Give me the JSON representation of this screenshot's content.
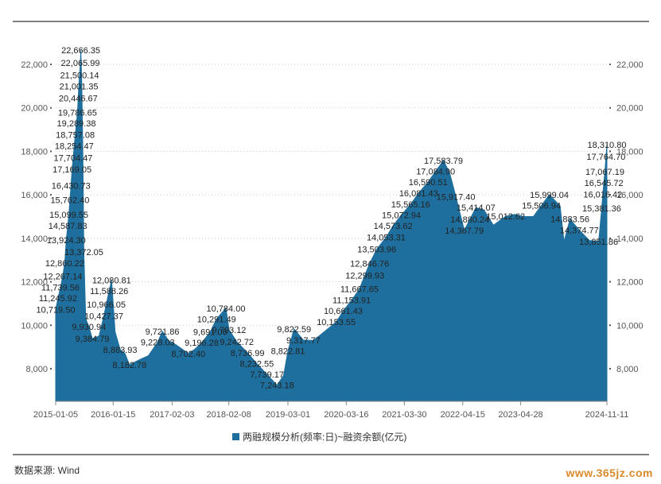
{
  "chart_data": {
    "type": "area",
    "legend": {
      "label": "两融规模分析(频率:日)~融资余额(亿元)",
      "placement": "bottom"
    },
    "color": "#1f6f9e",
    "ylim": [
      6500,
      23500
    ],
    "yticks": [
      "8,000",
      "10,000",
      "12,000",
      "14,000",
      "16,000",
      "18,000",
      "20,000",
      "22,000"
    ],
    "ytick_values": [
      8000,
      10000,
      12000,
      14000,
      16000,
      18000,
      20000,
      22000
    ],
    "xlim": [
      "2015-01-05",
      "2024-11-11"
    ],
    "xticks": [
      "2015-01-05",
      "2016-01-15",
      "2017-02-03",
      "2018-02-08",
      "2019-03-01",
      "2020-03-16",
      "2021-03-30",
      "2022-04-15",
      "2023-04-28",
      "2024-11-11"
    ],
    "grid": "horizontal-dotted",
    "series": [
      {
        "points": [
          [
            "2015-01-05",
            10719.5
          ],
          [
            "2015-01-20",
            11245.92
          ],
          [
            "2015-02-05",
            11739.56
          ],
          [
            "2015-02-20",
            12267.14
          ],
          [
            "2015-03-05",
            12860.22
          ],
          [
            "2015-03-15",
            13924.3
          ],
          [
            "2015-03-25",
            14587.83
          ],
          [
            "2015-04-01",
            15099.55
          ],
          [
            "2015-04-08",
            15762.4
          ],
          [
            "2015-04-15",
            16430.73
          ],
          [
            "2015-04-22",
            17169.05
          ],
          [
            "2015-04-29",
            17704.47
          ],
          [
            "2015-05-06",
            18254.47
          ],
          [
            "2015-05-13",
            18757.08
          ],
          [
            "2015-05-20",
            19289.38
          ],
          [
            "2015-05-27",
            19786.65
          ],
          [
            "2015-06-01",
            20446.67
          ],
          [
            "2015-06-05",
            21001.35
          ],
          [
            "2015-06-10",
            21500.14
          ],
          [
            "2015-06-15",
            22065.99
          ],
          [
            "2015-06-18",
            22666.35
          ],
          [
            "2015-06-25",
            21000
          ],
          [
            "2015-07-02",
            17500
          ],
          [
            "2015-07-08",
            13372.05
          ],
          [
            "2015-07-20",
            10300
          ],
          [
            "2015-08-10",
            9930.94
          ],
          [
            "2015-09-01",
            9384.79
          ],
          [
            "2015-10-15",
            9500
          ],
          [
            "2015-11-15",
            10427.37
          ],
          [
            "2015-12-01",
            10966.05
          ],
          [
            "2015-12-20",
            11588.26
          ],
          [
            "2016-01-05",
            12080.81
          ],
          [
            "2016-01-28",
            9700
          ],
          [
            "2016-03-01",
            8883.93
          ],
          [
            "2016-04-01",
            8700
          ],
          [
            "2016-05-01",
            8182.78
          ],
          [
            "2016-07-01",
            8400
          ],
          [
            "2016-09-01",
            8600
          ],
          [
            "2016-11-01",
            9228.03
          ],
          [
            "2016-12-01",
            9721.86
          ],
          [
            "2017-01-10",
            9300
          ],
          [
            "2017-03-01",
            9100
          ],
          [
            "2017-05-20",
            8702.4
          ],
          [
            "2017-07-01",
            8900
          ],
          [
            "2017-08-15",
            9196.28
          ],
          [
            "2017-10-10",
            9691.06
          ],
          [
            "2017-11-20",
            10291.49
          ],
          [
            "2018-01-20",
            10784.0
          ],
          [
            "2018-02-10",
            9793.12
          ],
          [
            "2018-04-01",
            9242.72
          ],
          [
            "2018-06-10",
            8736.99
          ],
          [
            "2018-08-10",
            8232.55
          ],
          [
            "2018-10-15",
            7739.17
          ],
          [
            "2018-12-20",
            7243.18
          ],
          [
            "2019-02-01",
            7700
          ],
          [
            "2019-03-01",
            8822.81
          ],
          [
            "2019-04-10",
            9822.59
          ],
          [
            "2019-06-10",
            9317.77
          ],
          [
            "2019-08-15",
            9300
          ],
          [
            "2019-11-10",
            9800
          ],
          [
            "2020-01-10",
            10153.55
          ],
          [
            "2020-02-25",
            10661.43
          ],
          [
            "2020-04-20",
            11153.91
          ],
          [
            "2020-06-10",
            11667.65
          ],
          [
            "2020-07-15",
            12299.93
          ],
          [
            "2020-08-15",
            12846.76
          ],
          [
            "2020-10-01",
            13503.96
          ],
          [
            "2020-12-01",
            14053.31
          ],
          [
            "2021-01-15",
            14573.62
          ],
          [
            "2021-03-10",
            15072.94
          ],
          [
            "2021-05-10",
            15565.16
          ],
          [
            "2021-07-01",
            16081.43
          ],
          [
            "2021-09-01",
            16590.51
          ],
          [
            "2021-10-20",
            17084.9
          ],
          [
            "2021-12-10",
            17583.79
          ],
          [
            "2022-01-20",
            17000
          ],
          [
            "2022-03-01",
            15917.4
          ],
          [
            "2022-04-25",
            14367.79
          ],
          [
            "2022-06-01",
            14880.24
          ],
          [
            "2022-07-10",
            15414.07
          ],
          [
            "2022-09-01",
            15300
          ],
          [
            "2022-11-01",
            14600
          ],
          [
            "2023-01-20",
            15012.62
          ],
          [
            "2023-03-20",
            15100
          ],
          [
            "2023-05-20",
            15000
          ],
          [
            "2023-07-20",
            15000
          ],
          [
            "2023-09-10",
            15506.94
          ],
          [
            "2023-11-01",
            15999.04
          ],
          [
            "2024-01-10",
            15500
          ],
          [
            "2024-02-05",
            13851.86
          ],
          [
            "2024-03-15",
            14883.56
          ],
          [
            "2024-05-15",
            14374.77
          ],
          [
            "2024-07-20",
            13900
          ],
          [
            "2024-09-18",
            13851.86
          ],
          [
            "2024-10-08",
            15381.36
          ],
          [
            "2024-10-15",
            16016.42
          ],
          [
            "2024-10-22",
            16545.72
          ],
          [
            "2024-10-29",
            17067.19
          ],
          [
            "2024-11-05",
            17764.7
          ],
          [
            "2024-11-11",
            18310.8
          ]
        ]
      }
    ],
    "annotations": [
      {
        "text": "22,666.35",
        "x": "2015-06-18",
        "y": 22666.35
      },
      {
        "text": "22,065.99",
        "x": "2015-06-15",
        "y": 22065.99
      },
      {
        "text": "21,500.14",
        "x": "2015-06-10",
        "y": 21500.14
      },
      {
        "text": "21,001.35",
        "x": "2015-06-05",
        "y": 21001.35
      },
      {
        "text": "20,446.67",
        "x": "2015-06-01",
        "y": 20446.67
      },
      {
        "text": "19,786.65",
        "x": "2015-05-27",
        "y": 19786.65
      },
      {
        "text": "19,289.38",
        "x": "2015-05-20",
        "y": 19289.38
      },
      {
        "text": "18,757.08",
        "x": "2015-05-13",
        "y": 18757.08
      },
      {
        "text": "18,254.47",
        "x": "2015-05-06",
        "y": 18254.47
      },
      {
        "text": "17,704.47",
        "x": "2015-04-29",
        "y": 17704.47
      },
      {
        "text": "17,169.05",
        "x": "2015-04-22",
        "y": 17169.05
      },
      {
        "text": "16,430.73",
        "x": "2015-04-15",
        "y": 16430.73
      },
      {
        "text": "15,762.40",
        "x": "2015-04-08",
        "y": 15762.4
      },
      {
        "text": "15,099.55",
        "x": "2015-04-01",
        "y": 15099.55
      },
      {
        "text": "14,587.83",
        "x": "2015-03-25",
        "y": 14587.83
      },
      {
        "text": "13,924.30",
        "x": "2015-03-15",
        "y": 13924.3
      },
      {
        "text": "13,372.05",
        "x": "2015-07-08",
        "y": 13372.05
      },
      {
        "text": "12,860.22",
        "x": "2015-03-05",
        "y": 12860.22
      },
      {
        "text": "12,267.14",
        "x": "2015-02-20",
        "y": 12267.14
      },
      {
        "text": "12,080.81",
        "x": "2016-01-05",
        "y": 12080.81
      },
      {
        "text": "11,739.56",
        "x": "2015-02-05",
        "y": 11739.56
      },
      {
        "text": "11,588.26",
        "x": "2015-12-20",
        "y": 11588.26
      },
      {
        "text": "11,245.92",
        "x": "2015-01-20",
        "y": 11245.92
      },
      {
        "text": "10,966.05",
        "x": "2015-12-01",
        "y": 10966.05
      },
      {
        "text": "10,719.50",
        "x": "2015-01-05",
        "y": 10719.5
      },
      {
        "text": "10,427.37",
        "x": "2015-11-15",
        "y": 10427.37
      },
      {
        "text": "9,930.94",
        "x": "2015-08-10",
        "y": 9930.94
      },
      {
        "text": "9,384.79",
        "x": "2015-09-01",
        "y": 9384.79
      },
      {
        "text": "8,883.93",
        "x": "2016-03-01",
        "y": 8883.93
      },
      {
        "text": "8,182.78",
        "x": "2016-05-01",
        "y": 8182.78
      },
      {
        "text": "9,721.86",
        "x": "2016-12-01",
        "y": 9721.86
      },
      {
        "text": "9,228.03",
        "x": "2016-11-01",
        "y": 9228.03
      },
      {
        "text": "8,702.40",
        "x": "2017-05-20",
        "y": 8702.4
      },
      {
        "text": "9,691.06",
        "x": "2017-10-10",
        "y": 9691.06
      },
      {
        "text": "9,196.28",
        "x": "2017-08-15",
        "y": 9196.28
      },
      {
        "text": "10,784.00",
        "x": "2018-01-20",
        "y": 10784.0
      },
      {
        "text": "10,291.49",
        "x": "2017-11-20",
        "y": 10291.49
      },
      {
        "text": "9,793.12",
        "x": "2018-02-10",
        "y": 9793.12
      },
      {
        "text": "9,242.72",
        "x": "2018-04-01",
        "y": 9242.72
      },
      {
        "text": "8,736.99",
        "x": "2018-06-10",
        "y": 8736.99
      },
      {
        "text": "8,232.55",
        "x": "2018-08-10",
        "y": 8232.55
      },
      {
        "text": "7,739.17",
        "x": "2018-10-15",
        "y": 7739.17
      },
      {
        "text": "7,243.18",
        "x": "2018-12-20",
        "y": 7243.18
      },
      {
        "text": "9,822.59",
        "x": "2019-04-10",
        "y": 9822.59
      },
      {
        "text": "9,317.77",
        "x": "2019-06-10",
        "y": 9317.77
      },
      {
        "text": "8,822.81",
        "x": "2019-03-01",
        "y": 8822.81
      },
      {
        "text": "10,153.55",
        "x": "2020-01-10",
        "y": 10153.55
      },
      {
        "text": "10,661.43",
        "x": "2020-02-25",
        "y": 10661.43
      },
      {
        "text": "11,153.91",
        "x": "2020-04-20",
        "y": 11153.91
      },
      {
        "text": "11,667.65",
        "x": "2020-06-10",
        "y": 11667.65
      },
      {
        "text": "12,299.93",
        "x": "2020-07-15",
        "y": 12299.93
      },
      {
        "text": "12,846.76",
        "x": "2020-08-15",
        "y": 12846.76
      },
      {
        "text": "13,503.96",
        "x": "2020-10-01",
        "y": 13503.96
      },
      {
        "text": "14,053.31",
        "x": "2020-12-01",
        "y": 14053.31
      },
      {
        "text": "14,573.62",
        "x": "2021-01-15",
        "y": 14573.62
      },
      {
        "text": "15,072.94",
        "x": "2021-03-10",
        "y": 15072.94
      },
      {
        "text": "15,565.16",
        "x": "2021-05-10",
        "y": 15565.16
      },
      {
        "text": "16,081.43",
        "x": "2021-07-01",
        "y": 16081.43
      },
      {
        "text": "16,590.51",
        "x": "2021-09-01",
        "y": 16590.51
      },
      {
        "text": "17,084.90",
        "x": "2021-10-20",
        "y": 17084.9
      },
      {
        "text": "17,583.79",
        "x": "2021-12-10",
        "y": 17583.79
      },
      {
        "text": "15,917.40",
        "x": "2022-03-01",
        "y": 15917.4
      },
      {
        "text": "15,414.07",
        "x": "2022-07-10",
        "y": 15414.07
      },
      {
        "text": "14,880.24",
        "x": "2022-06-01",
        "y": 14880.24
      },
      {
        "text": "14,367.79",
        "x": "2022-04-25",
        "y": 14367.79
      },
      {
        "text": "15,012.62",
        "x": "2023-01-20",
        "y": 15012.62
      },
      {
        "text": "15,999.04",
        "x": "2023-11-01",
        "y": 15999.04
      },
      {
        "text": "15,506.94",
        "x": "2023-09-10",
        "y": 15506.94
      },
      {
        "text": "14,883.56",
        "x": "2024-03-15",
        "y": 14883.56
      },
      {
        "text": "14,374.77",
        "x": "2024-05-15",
        "y": 14374.77
      },
      {
        "text": "13,851.86",
        "x": "2024-09-18",
        "y": 13851.86
      },
      {
        "text": "18,310.80",
        "x": "2024-11-11",
        "y": 18310.8
      },
      {
        "text": "17,764.70",
        "x": "2024-11-05",
        "y": 17764.7
      },
      {
        "text": "17,067.19",
        "x": "2024-10-29",
        "y": 17067.19
      },
      {
        "text": "16,545.72",
        "x": "2024-10-22",
        "y": 16545.72
      },
      {
        "text": "16,016.42",
        "x": "2024-10-15",
        "y": 16016.42
      },
      {
        "text": "15,381.36",
        "x": "2024-10-08",
        "y": 15381.36
      }
    ]
  },
  "footer": {
    "source": "数据来源: Wind",
    "watermark": "www.365jz.com"
  }
}
